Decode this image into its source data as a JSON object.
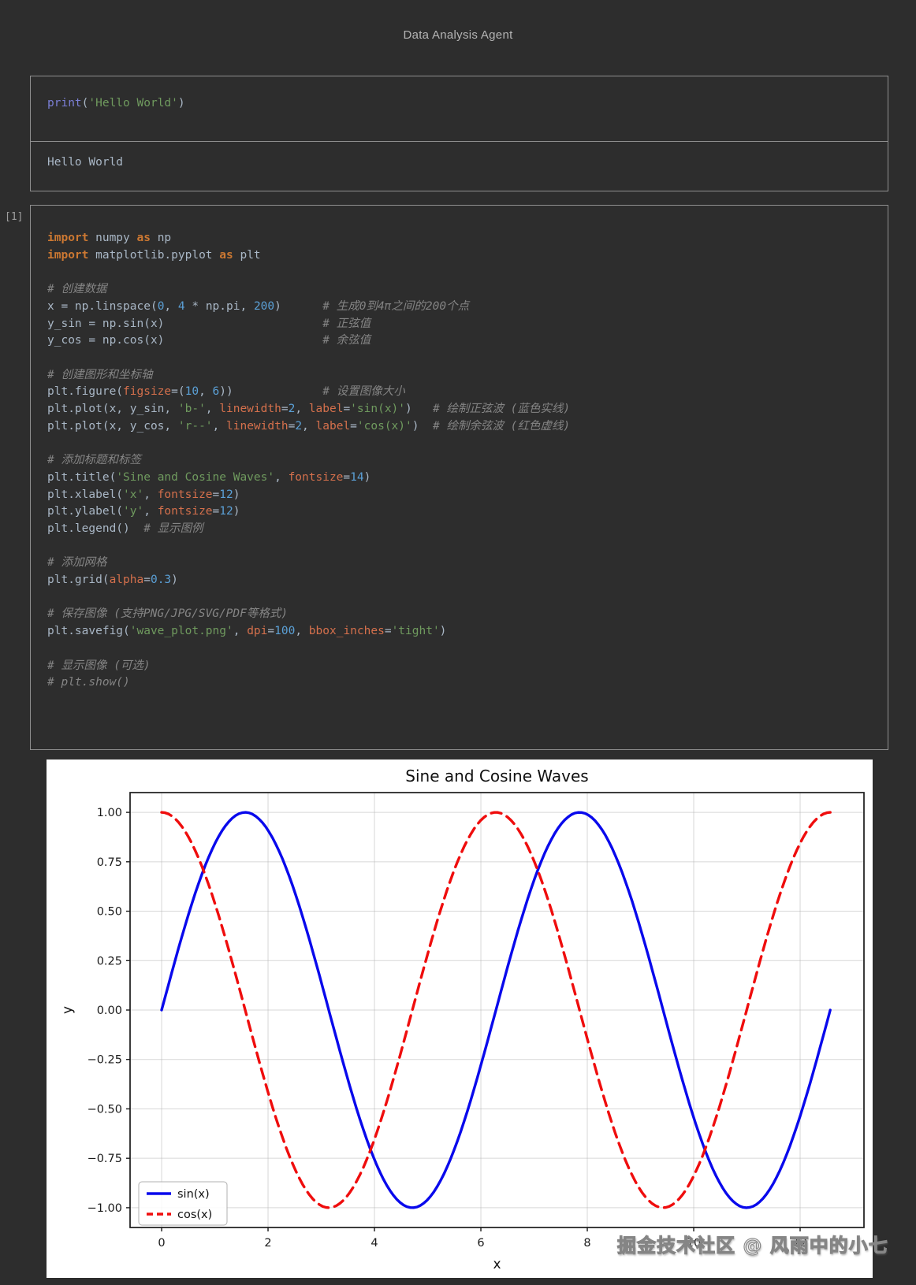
{
  "header": {
    "title": "Data Analysis Agent"
  },
  "cells": {
    "hello": {
      "code": [
        [
          [
            "b",
            "print"
          ],
          [
            "d",
            "("
          ],
          [
            "s",
            "'Hello World'"
          ],
          [
            "d",
            ")"
          ]
        ]
      ],
      "output": "Hello World"
    },
    "plot": {
      "execution_label": "[1]",
      "code": [
        [
          [
            "k",
            "import"
          ],
          [
            "d",
            " numpy "
          ],
          [
            "k",
            "as"
          ],
          [
            "d",
            " np"
          ]
        ],
        [
          [
            "k",
            "import"
          ],
          [
            "d",
            " matplotlib.pyplot "
          ],
          [
            "k",
            "as"
          ],
          [
            "d",
            " plt"
          ]
        ],
        [],
        [
          [
            "c",
            "# 创建数据"
          ]
        ],
        [
          [
            "d",
            "x = np.linspace("
          ],
          [
            "n",
            "0"
          ],
          [
            "d",
            ", "
          ],
          [
            "n",
            "4"
          ],
          [
            "d",
            " * np.pi, "
          ],
          [
            "n",
            "200"
          ],
          [
            "d",
            ")      "
          ],
          [
            "c",
            "# 生成0到4π之间的200个点"
          ]
        ],
        [
          [
            "d",
            "y_sin = np.sin(x)                       "
          ],
          [
            "c",
            "# 正弦值"
          ]
        ],
        [
          [
            "d",
            "y_cos = np.cos(x)                       "
          ],
          [
            "c",
            "# 余弦值"
          ]
        ],
        [],
        [
          [
            "c",
            "# 创建图形和坐标轴"
          ]
        ],
        [
          [
            "d",
            "plt.figure("
          ],
          [
            "p",
            "figsize"
          ],
          [
            "d",
            "=("
          ],
          [
            "n",
            "10"
          ],
          [
            "d",
            ", "
          ],
          [
            "n",
            "6"
          ],
          [
            "d",
            "))             "
          ],
          [
            "c",
            "# 设置图像大小"
          ]
        ],
        [
          [
            "d",
            "plt.plot(x, y_sin, "
          ],
          [
            "s",
            "'b-'"
          ],
          [
            "d",
            ", "
          ],
          [
            "p",
            "linewidth"
          ],
          [
            "d",
            "="
          ],
          [
            "n",
            "2"
          ],
          [
            "d",
            ", "
          ],
          [
            "p",
            "label"
          ],
          [
            "d",
            "="
          ],
          [
            "s",
            "'sin(x)'"
          ],
          [
            "d",
            ")   "
          ],
          [
            "c",
            "# 绘制正弦波 (蓝色实线)"
          ]
        ],
        [
          [
            "d",
            "plt.plot(x, y_cos, "
          ],
          [
            "s",
            "'r--'"
          ],
          [
            "d",
            ", "
          ],
          [
            "p",
            "linewidth"
          ],
          [
            "d",
            "="
          ],
          [
            "n",
            "2"
          ],
          [
            "d",
            ", "
          ],
          [
            "p",
            "label"
          ],
          [
            "d",
            "="
          ],
          [
            "s",
            "'cos(x)'"
          ],
          [
            "d",
            ")  "
          ],
          [
            "c",
            "# 绘制余弦波 (红色虚线)"
          ]
        ],
        [],
        [
          [
            "c",
            "# 添加标题和标签"
          ]
        ],
        [
          [
            "d",
            "plt.title("
          ],
          [
            "s",
            "'Sine and Cosine Waves'"
          ],
          [
            "d",
            ", "
          ],
          [
            "p",
            "fontsize"
          ],
          [
            "d",
            "="
          ],
          [
            "n",
            "14"
          ],
          [
            "d",
            ")"
          ]
        ],
        [
          [
            "d",
            "plt.xlabel("
          ],
          [
            "s",
            "'x'"
          ],
          [
            "d",
            ", "
          ],
          [
            "p",
            "fontsize"
          ],
          [
            "d",
            "="
          ],
          [
            "n",
            "12"
          ],
          [
            "d",
            ")"
          ]
        ],
        [
          [
            "d",
            "plt.ylabel("
          ],
          [
            "s",
            "'y'"
          ],
          [
            "d",
            ", "
          ],
          [
            "p",
            "fontsize"
          ],
          [
            "d",
            "="
          ],
          [
            "n",
            "12"
          ],
          [
            "d",
            ")"
          ]
        ],
        [
          [
            "d",
            "plt.legend()  "
          ],
          [
            "c",
            "# 显示图例"
          ]
        ],
        [],
        [
          [
            "c",
            "# 添加网格"
          ]
        ],
        [
          [
            "d",
            "plt.grid("
          ],
          [
            "p",
            "alpha"
          ],
          [
            "d",
            "="
          ],
          [
            "n",
            "0.3"
          ],
          [
            "d",
            ")"
          ]
        ],
        [],
        [
          [
            "c",
            "# 保存图像 (支持PNG/JPG/SVG/PDF等格式)"
          ]
        ],
        [
          [
            "d",
            "plt.savefig("
          ],
          [
            "s",
            "'wave_plot.png'"
          ],
          [
            "d",
            ", "
          ],
          [
            "p",
            "dpi"
          ],
          [
            "d",
            "="
          ],
          [
            "n",
            "100"
          ],
          [
            "d",
            ", "
          ],
          [
            "p",
            "bbox_inches"
          ],
          [
            "d",
            "="
          ],
          [
            "s",
            "'tight'"
          ],
          [
            "d",
            ")"
          ]
        ],
        [],
        [
          [
            "c",
            "# 显示图像 (可选)"
          ]
        ],
        [
          [
            "c",
            "# plt.show()"
          ]
        ]
      ]
    }
  },
  "chart_data": {
    "type": "line",
    "title": "Sine and Cosine Waves",
    "xlabel": "x",
    "ylabel": "y",
    "x_range": [
      0,
      12.566370614359172
    ],
    "n_points": 200,
    "series": [
      {
        "name": "sin(x)",
        "fn": "sin",
        "color": "#0909ec",
        "style": "solid",
        "linewidth": 2
      },
      {
        "name": "cos(x)",
        "fn": "cos",
        "color": "#ef0d0d",
        "style": "dashed",
        "linewidth": 2
      }
    ],
    "xlim": [
      -0.593,
      13.2
    ],
    "ylim": [
      -1.1,
      1.1
    ],
    "xticks": [
      0,
      2,
      4,
      6,
      8,
      10,
      12
    ],
    "yticks": [
      1.0,
      0.75,
      0.5,
      0.25,
      0.0,
      -0.25,
      -0.5,
      -0.75,
      -1.0
    ],
    "grid": true,
    "grid_alpha": 0.3,
    "legend": {
      "position": "lower left",
      "entries": [
        "sin(x)",
        "cos(x)"
      ]
    }
  },
  "watermark": {
    "text": "掘金技术社区 @ 风雨中的小七"
  }
}
